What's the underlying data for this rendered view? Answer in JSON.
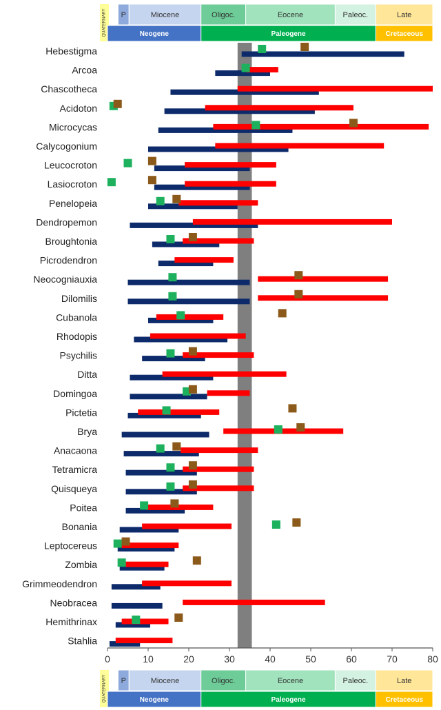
{
  "chart_data": {
    "type": "range-bar",
    "xlim": [
      0,
      80
    ],
    "xticks": [
      0,
      10,
      20,
      30,
      40,
      50,
      60,
      70,
      80
    ],
    "highlight_band": {
      "from": 32,
      "to": 35.5,
      "color": "#7f7f7f"
    },
    "colors": {
      "blue": "#0d2a6b",
      "red": "#ff0000",
      "green": "#1db15e",
      "brown": "#8b5a1a"
    },
    "timescale": {
      "quaternary_label": "QUATERNARY",
      "epochs": [
        {
          "label": "P",
          "from": 2.6,
          "to": 5.3,
          "color": "#8ea9db"
        },
        {
          "label": "Miocene",
          "from": 5.3,
          "to": 23,
          "color": "#c5d5ef"
        },
        {
          "label": "Oligoc.",
          "from": 23,
          "to": 34,
          "color": "#6dcc98"
        },
        {
          "label": "Eocene",
          "from": 34,
          "to": 56,
          "color": "#a0e3bd"
        },
        {
          "label": "Paleoc.",
          "from": 56,
          "to": 66,
          "color": "#d3f2e2"
        },
        {
          "label": "Late",
          "from": 66,
          "to": 80,
          "color": "#ffe699"
        }
      ],
      "periods": [
        {
          "label": "Neogene",
          "from": 0,
          "to": 23,
          "color": "#4472c4"
        },
        {
          "label": "Paleogene",
          "from": 23,
          "to": 66,
          "color": "#00b050"
        },
        {
          "label": "Cretaceous",
          "from": 66,
          "to": 80,
          "color": "#ffc000"
        }
      ]
    },
    "taxa": [
      {
        "name": "Hebestigma",
        "blue": [
          33,
          73
        ],
        "red": null,
        "green": 38,
        "brown": 48.5
      },
      {
        "name": "Arcoa",
        "blue": [
          26.5,
          40
        ],
        "red": [
          34,
          42
        ],
        "green": 34,
        "brown": null
      },
      {
        "name": "Chascotheca",
        "blue": [
          15.5,
          52
        ],
        "red": [
          32,
          80
        ],
        "green": null,
        "brown": null
      },
      {
        "name": "Acidoton",
        "blue": [
          14,
          51
        ],
        "red": [
          24,
          60.5
        ],
        "green": 1.5,
        "brown": 2.5
      },
      {
        "name": "Microcycas",
        "blue": [
          12.5,
          45.5
        ],
        "red": [
          26,
          79
        ],
        "green": 36.5,
        "brown": 60.5
      },
      {
        "name": "Calycogonium",
        "blue": [
          10,
          44.5
        ],
        "red": [
          26.5,
          68
        ],
        "green": null,
        "brown": null
      },
      {
        "name": "Leucocroton",
        "blue": [
          11.5,
          35
        ],
        "red": [
          19,
          41.5
        ],
        "green": 5,
        "brown": 11
      },
      {
        "name": "Lasiocroton",
        "blue": [
          11.5,
          35
        ],
        "red": [
          19,
          41.5
        ],
        "green": 1,
        "brown": 11
      },
      {
        "name": "Penelopeia",
        "blue": [
          10,
          32
        ],
        "red": [
          17.5,
          37
        ],
        "green": 13,
        "brown": 17
      },
      {
        "name": "Dendropemon",
        "blue": [
          5.5,
          37
        ],
        "red": [
          21,
          70
        ],
        "green": null,
        "brown": null
      },
      {
        "name": "Broughtonia",
        "blue": [
          11,
          27.5
        ],
        "red": [
          18.5,
          36
        ],
        "green": 15.5,
        "brown": 21
      },
      {
        "name": "Picrodendron",
        "blue": [
          12.5,
          26
        ],
        "red": [
          16.5,
          31
        ],
        "green": null,
        "brown": null
      },
      {
        "name": "Neocogniauxia",
        "blue": [
          5,
          35
        ],
        "red": [
          37,
          69
        ],
        "green": 16,
        "brown": 47
      },
      {
        "name": "Dilomilis",
        "blue": [
          5,
          35
        ],
        "red": [
          37,
          69
        ],
        "green": 16,
        "brown": 47
      },
      {
        "name": "Cubanola",
        "blue": [
          10,
          26
        ],
        "red": [
          12,
          28.5
        ],
        "green": 18,
        "brown": 43
      },
      {
        "name": "Rhodopis",
        "blue": [
          6.5,
          29.5
        ],
        "red": [
          10.5,
          34
        ],
        "green": null,
        "brown": null
      },
      {
        "name": "Psychilis",
        "blue": [
          8.5,
          24
        ],
        "red": [
          18.5,
          36
        ],
        "green": 15.5,
        "brown": 21
      },
      {
        "name": "Ditta",
        "blue": [
          5.5,
          26
        ],
        "red": [
          13.5,
          44
        ],
        "green": null,
        "brown": null
      },
      {
        "name": "Domingoa",
        "blue": [
          5.5,
          24.5
        ],
        "red": [
          24.5,
          35
        ],
        "green": 19.5,
        "brown": 21
      },
      {
        "name": "Pictetia",
        "blue": [
          5,
          23
        ],
        "red": [
          7.5,
          27.5
        ],
        "green": 14.5,
        "brown": 45.5
      },
      {
        "name": "Brya",
        "blue": [
          3.5,
          25
        ],
        "red": [
          28.5,
          58
        ],
        "green": 42,
        "brown": 47.5
      },
      {
        "name": "Anacaona",
        "blue": [
          4,
          22.5
        ],
        "red": [
          18,
          37
        ],
        "green": 13,
        "brown": 17
      },
      {
        "name": "Tetramicra",
        "blue": [
          4.5,
          22
        ],
        "red": [
          18.5,
          36
        ],
        "green": 15.5,
        "brown": 21
      },
      {
        "name": "Quisqueya",
        "blue": [
          4.5,
          22
        ],
        "red": [
          18.5,
          36
        ],
        "green": 15.5,
        "brown": 21
      },
      {
        "name": "Poitea",
        "blue": [
          4.5,
          19
        ],
        "red": [
          9.5,
          26
        ],
        "green": 9,
        "brown": 16.5
      },
      {
        "name": "Bonania",
        "blue": [
          3,
          17.5
        ],
        "red": [
          8.5,
          30.5
        ],
        "green": 41.5,
        "brown": 46.5
      },
      {
        "name": "Leptocereus",
        "blue": [
          2.5,
          16.5
        ],
        "red": [
          3.5,
          17.5
        ],
        "green": 2.5,
        "brown": 4.5
      },
      {
        "name": "Zombia",
        "blue": [
          3,
          14
        ],
        "red": [
          4.5,
          15
        ],
        "green": 3.5,
        "brown": 22
      },
      {
        "name": "Grimmeodendron",
        "blue": [
          1,
          13
        ],
        "red": [
          8.5,
          30.5
        ],
        "green": null,
        "brown": null
      },
      {
        "name": "Neobracea",
        "blue": [
          1,
          13.5
        ],
        "red": [
          18.5,
          53.5
        ],
        "green": null,
        "brown": null
      },
      {
        "name": "Hemithrinax",
        "blue": [
          2,
          10.5
        ],
        "red": [
          3.5,
          15
        ],
        "green": 7,
        "brown": 17.5
      },
      {
        "name": "Stahlia",
        "blue": [
          0.5,
          8
        ],
        "red": [
          2,
          16
        ],
        "green": null,
        "brown": null
      }
    ]
  }
}
